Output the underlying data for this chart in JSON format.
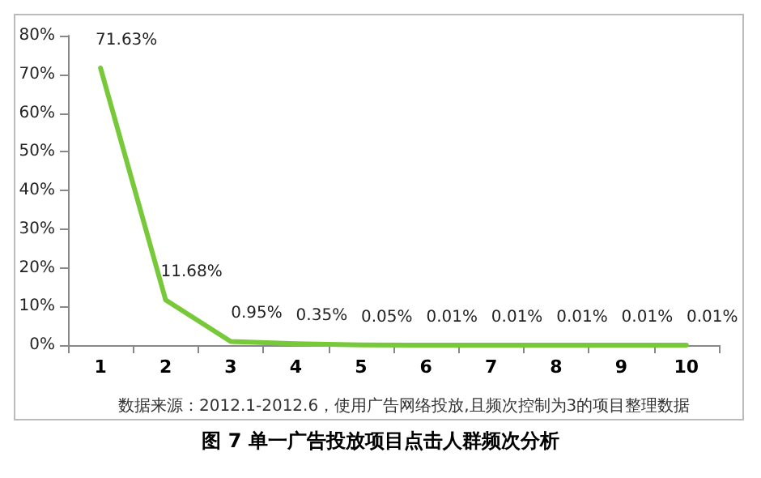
{
  "chart_data": {
    "type": "line",
    "title": "图 7 单一广告投放项目点击人群频次分析",
    "annotations": [
      "数据来源：2012.1-2012.6，使用广告网络投放,且频次控制为3的项目整理数据"
    ],
    "categories": [
      "1",
      "2",
      "3",
      "4",
      "5",
      "6",
      "7",
      "8",
      "9",
      "10"
    ],
    "series": [
      {
        "color": "#77c93a",
        "values": [
          71.63,
          11.68,
          0.95,
          0.35,
          0.05,
          0.01,
          0.01,
          0.01,
          0.01,
          0.01
        ],
        "value_labels": [
          "71.63%",
          "11.68%",
          "0.95%",
          "0.35%",
          "0.05%",
          "0.01%",
          "0.01%",
          "0.01%",
          "0.01%",
          "0.01%"
        ]
      }
    ],
    "ylim": [
      0,
      80
    ],
    "yticks": [
      {
        "value": 0,
        "label": "0%"
      },
      {
        "value": 10,
        "label": "10%"
      },
      {
        "value": 20,
        "label": "20%"
      },
      {
        "value": 30,
        "label": "30%"
      },
      {
        "value": 40,
        "label": "40%"
      },
      {
        "value": 50,
        "label": "50%"
      },
      {
        "value": 60,
        "label": "60%"
      },
      {
        "value": 70,
        "label": "70%"
      },
      {
        "value": 80,
        "label": "80%"
      }
    ],
    "grid": false,
    "marker": "none",
    "line_style": "solid"
  }
}
